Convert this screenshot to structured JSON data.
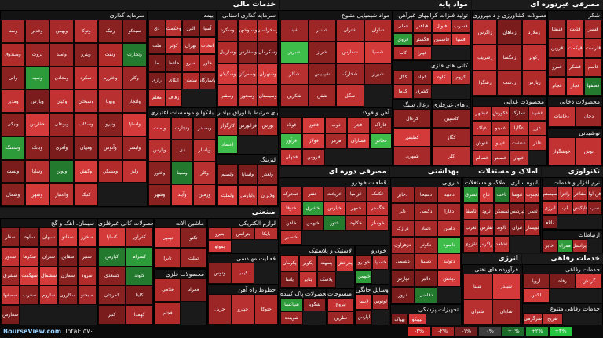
{
  "brand": "BourseView.com",
  "total": "Total: ۵۷۰",
  "legend": [
    {
      "label": "-۳%",
      "color": "#cf2b2b"
    },
    {
      "label": "-۲%",
      "color": "#a52424"
    },
    {
      "label": "-۱%",
      "color": "#6e1f1f"
    },
    {
      "label": "۰%",
      "color": "#3d3d3d"
    },
    {
      "label": "+۱%",
      "color": "#1c6b2a"
    },
    {
      "label": "+۲%",
      "color": "#1f9a35"
    },
    {
      "label": "+۳%",
      "color": "#24c640"
    }
  ],
  "palette": [
    "#b12b2b",
    "#9c2525",
    "#c23232",
    "#8a2121",
    "#a82929",
    "#d43a3a",
    "#7a1c1c",
    "#b83030"
  ],
  "green": [
    "#2e9b3a",
    "#3ebd4a",
    "#237a2e"
  ],
  "sectors": {
    "financial": {
      "title": "خدمات مالی"
    },
    "basic": {
      "title": "مواد پایه"
    },
    "nondurable": {
      "title": "مصرفی غیردوره ای"
    },
    "industry": {
      "title": "صنعتی"
    },
    "durable": {
      "title": "مصرفی دوره ای"
    },
    "health": {
      "title": "بهداشتی"
    },
    "realestate": {
      "title": "املاک و مستغلات"
    },
    "tech": {
      "title": "تکنولوژی"
    },
    "energy": {
      "title": "انرژی"
    },
    "welfare": {
      "title": "خدمات رفاهی"
    }
  },
  "subs": {
    "invest": {
      "title": "سرمایه گذاری",
      "cells": [
        "وصنا",
        "وغدیر",
        "وبهمن",
        "وتوکا",
        "رنیک",
        "سیدکو",
        "وصندوق",
        "ثروت",
        "وامید",
        "وپترو",
        "ونفت",
        "وتجارت",
        "واتی",
        "وسپه",
        "ومعادن",
        "سکرد",
        "وخارزم",
        "وکار",
        "ومدیر",
        "وپارس",
        "وکیان",
        "وسبحان",
        "وپویا",
        "ولتجار",
        "ونیکی",
        "حفارس",
        "وبوعلی",
        "وسکاب",
        "ونیرو",
        "ولساپا",
        "وسمنگ",
        "وبانک",
        "وآفری",
        "ومهان",
        "وآتوس",
        "ولبشر",
        "وپست",
        "وساپا",
        "ونوین",
        "وکیش",
        "ومسکن",
        "ولیز",
        "وشمال",
        "وشهر",
        "واعتبار",
        "کنیک"
      ]
    },
    "insurance": {
      "title": "بیمه",
      "cells": [
        "دی",
        "وحکمت",
        "البرز",
        "آسیا",
        "ملت",
        "کوثر",
        "تهران",
        "انتخاب",
        "ما",
        "حافظ",
        "سرو",
        "خاور",
        "رازی",
        "اتکای",
        "سامان",
        "پاسارگاد",
        "معلم",
        "زفاف"
      ]
    },
    "investment2": {
      "title": "سرمایه گذاری استانی",
      "cells": [
        "وسکرد",
        "وسبوشهر",
        "وسخراسان",
        "وساربیل",
        "وسفارس",
        "وسکرمان",
        "وسگیلان",
        "وسمرکز",
        "وستهران",
        "وسقم",
        "وسخوز",
        "وسیستان"
      ]
    },
    "banks": {
      "title": "بانکها و موسسات اعتباری",
      "cells": [
        "وبملت",
        "وتجارت",
        "وبصادر",
        "وپارس",
        "دی",
        "وپاسار",
        "وخاور",
        "وسینا",
        "وکار",
        "وشهر",
        "وآیند",
        "وزمین"
      ]
    },
    "stocks": {
      "title": "فعالیتهای مرتبط با اوراق بهادار",
      "cells": [
        "کارگزار",
        "فرابورس",
        "بورس",
        "اعتماد"
      ]
    },
    "leasing": {
      "title": "لیزینگ",
      "cells": [
        "ولصنم",
        "ولساپا",
        "ولغدر",
        "ولملت",
        "ولپارس",
        "ولایران"
      ]
    },
    "chemical": {
      "title": "مواد شیمیایی متنوع",
      "cells": [
        "شپنا",
        "شبندر",
        "شتران",
        "شاوان",
        "شبریز",
        "شراز",
        "شفارس",
        "شسپا",
        "شکلر",
        "شپدیس",
        "شخارک",
        "شیراز",
        "شکربن",
        "شفن",
        "شگل"
      ]
    },
    "oilproducts": {
      "title": "تولید فلزات گرانبهای غیرآهن",
      "cells": [
        "فملی",
        "فباهنر",
        "فنوال",
        "فسرب",
        "فروی",
        "فگستر",
        "فاسمین",
        "فسپا",
        "کاما",
        "فپیرا"
      ]
    },
    "mining": {
      "title": "کانی های فلزی",
      "cells": [
        "کگل",
        "کچاد",
        "کاوه",
        "کروم",
        "کدما",
        "کشرق"
      ]
    },
    "cement": {
      "title": "آهن و فولاد",
      "cells": [
        "فولاد",
        "فخوز",
        "ذوب",
        "فجر",
        "فاراک",
        "فرآور",
        "فولاژ",
        "هرمز",
        "فسازان",
        "فخاس",
        "فجهان",
        "فروس"
      ]
    },
    "stone": {
      "title": "زغال سنگ",
      "cells": [
        "کزغال",
        "کطبس",
        "شبهرن"
      ]
    },
    "nonmetal": {
      "title": "کانی های غیرفلزی",
      "cells": [
        "کاسپین",
        "کگاز",
        "کلر"
      ]
    },
    "food": {
      "title": "محصولات غذایی",
      "cells": [
        "غبشهر",
        "غکورش",
        "غمارگ",
        "غشهد",
        "غپاک",
        "غمینو",
        "غگلپا",
        "غزر",
        "غنوش",
        "غپینو",
        "غدشت",
        "غاذر",
        "غسالم",
        "غصینو",
        "غبهار"
      ]
    },
    "agri": {
      "title": "محصولات کشاورزی و دامپروری",
      "cells": [
        "زاگرس",
        "زماهان",
        "زملارد",
        "زشریف",
        "زمگسا",
        "زکوثر",
        "زشگزا",
        "زدشت",
        "زپارس"
      ]
    },
    "sugar": {
      "title": "شکر",
      "cells": [
        "قنیشا",
        "قثابت",
        "قشیر",
        "قزوین",
        "قهکمت",
        "قلرست",
        "قمرو",
        "قشکر",
        "قاسم",
        "قجام",
        "قچار",
        "قصفها"
      ]
    },
    "tobacco": {
      "title": "محصولات دخانی",
      "cells": [
        "دخانیات",
        "دخان"
      ]
    },
    "drinks": {
      "title": "نوشیدنی",
      "cells": [
        "خوشگوار",
        "نوش"
      ]
    },
    "cars": {
      "title": "قطعات خودرو",
      "cells": [
        "خمحرکه",
        "خفنر",
        "خریخت",
        "خزامیا",
        "خکمک",
        "ختوقا",
        "خشرق",
        "خپارس",
        "خمهر",
        "خگستر",
        "خاهن",
        "خبهمن",
        "ختور",
        "خکاوه",
        "خوساز",
        "خنصیر"
      ]
    },
    "autos": {
      "title": "خودرو",
      "cells": [
        "خودرو",
        "خساپا",
        "خبهمن"
      ]
    },
    "rubber": {
      "title": "لاستیک و پلاستیک",
      "cells": [
        "پکرمان",
        "پکویر",
        "پسهند",
        "پدرخش",
        "پاسا",
        "پتایر",
        "پلاسک"
      ]
    },
    "homeapp": {
      "title": "وسایل خانگی",
      "cells": [
        "لابسا",
        "لوتوس",
        "لپارس"
      ]
    },
    "clean": {
      "title": "محصولات پاک کننده",
      "cells": [
        "شپاکسا",
        "شگویا",
        "شوینده"
      ]
    },
    "textiles": {
      "title": "منسوجات",
      "cells": [
        "نبروج",
        "نطرین"
      ]
    },
    "pharma": {
      "title": "دارویی",
      "cells": [
        "دجابر",
        "دسبحا",
        "دعبید",
        "دلر",
        "دکیمی",
        "دفارا",
        "درازک",
        "دتماد",
        "دامین",
        "دزهراوی",
        "دکوثر",
        "داسوه",
        "دشیمی",
        "دسینا",
        "دتولید",
        "دپارس",
        "دالبر",
        "دپخش",
        "دروز",
        "دقاضی"
      ]
    },
    "medequip": {
      "title": "تجهیزات پزشکی",
      "cells": [
        "بهپاک",
        "تیپیکو"
      ]
    },
    "realest": {
      "title": "انبوه سازی، املاک و مستغلات",
      "cells": [
        "ثشرق",
        "ثباغ",
        "ثاخت",
        "ثنوسا",
        "ثجنوب",
        "ثاصفا",
        "ثرود",
        "ثمسکن",
        "ثپردیس",
        "ثعمرا",
        "ثغرب",
        "ثفارس",
        "ثالوند",
        "ثتران",
        "ثبهساز",
        "ثقزوی",
        "ثزاگرس",
        "ثشاهد"
      ]
    },
    "software": {
      "title": "نرم افزار و خدمات",
      "cells": [
        "سیستم",
        "رافزا",
        "مفاخر",
        "فن آوا",
        "انرژی",
        "آپ",
        "تاپکیش",
        "سپ",
        "داتام"
      ]
    },
    "telecom": {
      "title": "ارتباطات",
      "cells": [
        "اخابر",
        "همراه",
        "ایرانسل"
      ]
    },
    "steelcement": {
      "title": "سیمان، آهک و گچ",
      "cells": [
        "سفار",
        "ساوه",
        "سبهان",
        "سفانو",
        "سخزر",
        "سدور",
        "سکرما",
        "ستران",
        "سقاین",
        "سنیر",
        "سشرق",
        "سهگمت",
        "سشمال",
        "سمازن",
        "سرود",
        "سصفها",
        "سغرب",
        "ساروم",
        "سکارون",
        "سبجنو",
        "سفارس"
      ]
    },
    "glass": {
      "title": "محصولات کانی غیرفلزی",
      "cells": [
        "کساپا",
        "کفرآور",
        "کپارس",
        "کسرام",
        "کسعدی",
        "کلوند",
        "کمرجان",
        "کایتا",
        "کنیر",
        "کهمدا"
      ]
    },
    "machine": {
      "title": "ماشین آلات",
      "cells": [
        "تپمپی",
        "تکنو",
        "تایرا",
        "تملت"
      ]
    },
    "electric": {
      "title": "لوازم الکتریکی",
      "cells": [
        "بنیرو",
        "بترانس",
        "بایکا",
        "بموتو"
      ]
    },
    "engine": {
      "title": "فعالیت مهندسی",
      "cells": [
        "وتوس",
        "کیمیا"
      ]
    },
    "woodpaper": {
      "title": "محصولات فلزی",
      "cells": [
        "فلامی",
        "فمراد",
        "فجام"
      ]
    },
    "hospital": {
      "title": "خطوط راه آهن",
      "cells": [
        "حریل",
        "حپترو",
        "حتوکا"
      ]
    },
    "oil": {
      "title": "فرآورده های نفتی",
      "cells": [
        "شپنا",
        "شبندر",
        "شتران",
        "شاوان"
      ]
    },
    "hotel": {
      "title": "خدمات رفاهی",
      "cells": [
        "اروپا",
        "رفاه",
        "گردش",
        "لکس"
      ]
    },
    "entertain": {
      "title": "خدمات رفاهی متنوع",
      "cells": [
        "سرگرمی",
        "تفریح"
      ]
    }
  }
}
